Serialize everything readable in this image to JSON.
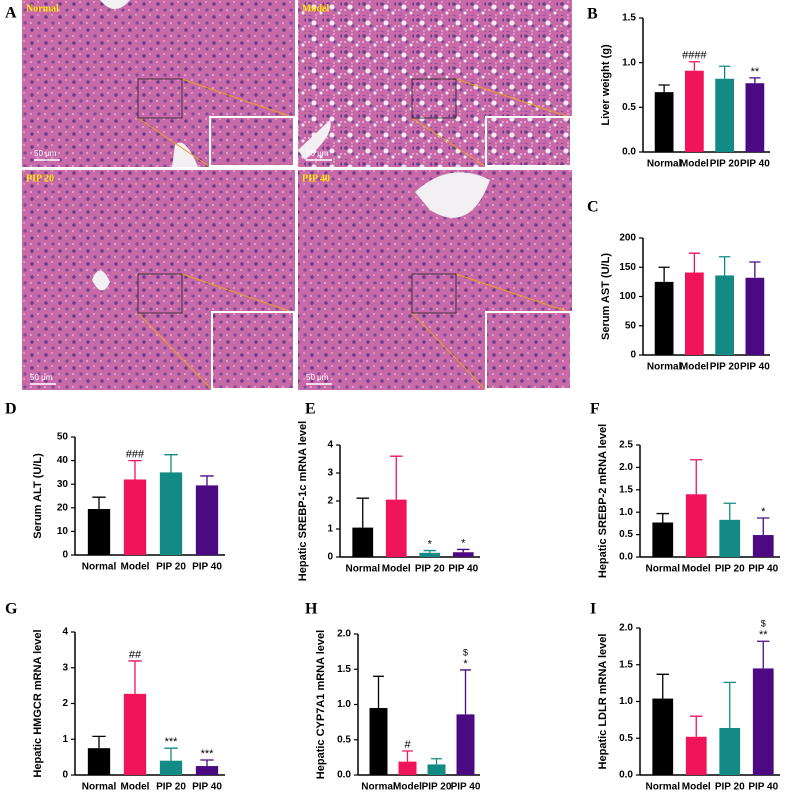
{
  "histology": {
    "panel": "A",
    "images": [
      {
        "label": "Normal",
        "scale": "50 μm"
      },
      {
        "label": "Model",
        "scale": "50 μm"
      },
      {
        "label": "PIP 20",
        "scale": "50 μm"
      },
      {
        "label": "PIP 40",
        "scale": "50 μm"
      }
    ]
  },
  "chart_data": [
    {
      "type": "bar",
      "panel": "B",
      "y_label": "Liver weight (g)",
      "categories": [
        "Normal",
        "Model",
        "PIP 20",
        "PIP 40"
      ],
      "values": [
        0.67,
        0.91,
        0.82,
        0.77
      ],
      "errors": [
        0.08,
        0.1,
        0.14,
        0.06
      ],
      "colors": [
        "#000000",
        "#f0145a",
        "#138a84",
        "#4b0a82"
      ],
      "significance": [
        null,
        "####",
        null,
        "**"
      ],
      "ylim": [
        0,
        1.5
      ],
      "yticks": [
        {
          "value": 0,
          "label": "0.0"
        },
        {
          "value": 0.5,
          "label": "0.5"
        },
        {
          "value": 1,
          "label": "1.0"
        },
        {
          "value": 1.5,
          "label": "1.5"
        }
      ]
    },
    {
      "type": "bar",
      "panel": "C",
      "y_label": "Serum AST (U/L)",
      "categories": [
        "Normal",
        "Model",
        "PIP 20",
        "PIP 40"
      ],
      "values": [
        125,
        141,
        136,
        132
      ],
      "errors": [
        25,
        33,
        32,
        27
      ],
      "colors": [
        "#000000",
        "#f0145a",
        "#138a84",
        "#4b0a82"
      ],
      "ylim": [
        0,
        200
      ],
      "yticks": [
        0,
        50,
        100,
        150,
        200
      ]
    },
    {
      "type": "bar",
      "panel": "D",
      "y_label": "Serum ALT (U/L)",
      "categories": [
        "Normal",
        "Model",
        "PIP 20",
        "PIP 40"
      ],
      "values": [
        19.5,
        32,
        35,
        29.5
      ],
      "errors": [
        5,
        8,
        7.5,
        4
      ],
      "colors": [
        "#000000",
        "#f0145a",
        "#138a84",
        "#4b0a82"
      ],
      "significance": [
        null,
        "###",
        null,
        null
      ],
      "ylim": [
        0,
        50
      ],
      "yticks": [
        0,
        10,
        20,
        30,
        40,
        50
      ]
    },
    {
      "type": "bar",
      "panel": "E",
      "y_label": "Hepatic SREBP-1c mRNA level",
      "categories": [
        "Normal",
        "Model",
        "PIP 20",
        "PIP 40"
      ],
      "values": [
        1.05,
        2.05,
        0.15,
        0.17
      ],
      "errors": [
        1.05,
        1.55,
        0.08,
        0.1
      ],
      "colors": [
        "#000000",
        "#f0145a",
        "#138a84",
        "#4b0a82"
      ],
      "significance": [
        null,
        null,
        "*",
        "*"
      ],
      "ylim": [
        0,
        4
      ],
      "yticks": [
        0,
        1,
        2,
        3,
        4
      ]
    },
    {
      "type": "bar",
      "panel": "F",
      "y_label": "Hepatic SREBP-2 mRNA level",
      "categories": [
        "Normal",
        "Model",
        "PIP 20",
        "PIP 40"
      ],
      "values": [
        0.77,
        1.4,
        0.83,
        0.49
      ],
      "errors": [
        0.2,
        0.77,
        0.37,
        0.38
      ],
      "colors": [
        "#000000",
        "#f0145a",
        "#138a84",
        "#4b0a82"
      ],
      "significance": [
        null,
        null,
        null,
        "*"
      ],
      "ylim": [
        0,
        2.5
      ],
      "yticks": [
        {
          "value": 0,
          "label": "0.0"
        },
        {
          "value": 0.5,
          "label": "0.5"
        },
        {
          "value": 1,
          "label": "1.0"
        },
        {
          "value": 1.5,
          "label": "1.5"
        },
        {
          "value": 2,
          "label": "2.0"
        },
        {
          "value": 2.5,
          "label": "2.5"
        }
      ]
    },
    {
      "type": "bar",
      "panel": "G",
      "y_label": "Hepatic HMGCR mRNA level",
      "categories": [
        "Normal",
        "Model",
        "PIP 20",
        "PIP 40"
      ],
      "values": [
        0.75,
        2.27,
        0.4,
        0.25
      ],
      "errors": [
        0.33,
        0.92,
        0.35,
        0.17
      ],
      "colors": [
        "#000000",
        "#f0145a",
        "#138a84",
        "#4b0a82"
      ],
      "significance": [
        null,
        "##",
        "***",
        "***"
      ],
      "ylim": [
        0,
        4
      ],
      "yticks": [
        0,
        1,
        2,
        3,
        4
      ]
    },
    {
      "type": "bar",
      "panel": "H",
      "y_label": "Hepatic CYP7A1 mRNA level",
      "categories": [
        "Normal",
        "Model",
        "PIP 20",
        "PIP 40"
      ],
      "values": [
        0.95,
        0.19,
        0.15,
        0.86
      ],
      "errors": [
        0.45,
        0.15,
        0.08,
        0.63
      ],
      "colors": [
        "#000000",
        "#f0145a",
        "#138a84",
        "#4b0a82"
      ],
      "significance": [
        null,
        "#",
        null,
        "*"
      ],
      "significance_top": [
        null,
        null,
        null,
        "$"
      ],
      "ylim": [
        0,
        2
      ],
      "yticks": [
        {
          "value": 0,
          "label": "0.0"
        },
        {
          "value": 0.5,
          "label": "0.5"
        },
        {
          "value": 1,
          "label": "1.0"
        },
        {
          "value": 1.5,
          "label": "1.5"
        },
        {
          "value": 2,
          "label": "2.0"
        }
      ]
    },
    {
      "type": "bar",
      "panel": "I",
      "y_label": "Hepatic LDLR mRNA level",
      "categories": [
        "Normal",
        "Model",
        "PIP 20",
        "PIP 40"
      ],
      "values": [
        1.04,
        0.52,
        0.64,
        1.45
      ],
      "errors": [
        0.33,
        0.28,
        0.62,
        0.37
      ],
      "colors": [
        "#000000",
        "#f0145a",
        "#138a84",
        "#4b0a82"
      ],
      "significance": [
        null,
        null,
        null,
        "**"
      ],
      "significance_top": [
        null,
        null,
        null,
        "$"
      ],
      "ylim": [
        0,
        2
      ],
      "yticks": [
        {
          "value": 0,
          "label": "0.0"
        },
        {
          "value": 0.5,
          "label": "0.5"
        },
        {
          "value": 1,
          "label": "1.0"
        },
        {
          "value": 1.5,
          "label": "1.5"
        },
        {
          "value": 2,
          "label": "2.0"
        }
      ]
    }
  ]
}
